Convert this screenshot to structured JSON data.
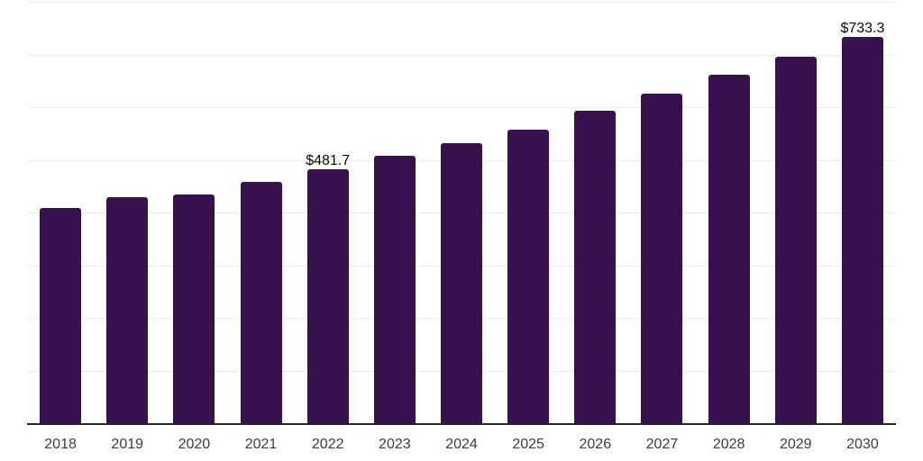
{
  "chart_data": {
    "type": "bar",
    "title": "",
    "xlabel": "",
    "ylabel": "",
    "categories": [
      "2018",
      "2019",
      "2020",
      "2021",
      "2022",
      "2023",
      "2024",
      "2025",
      "2026",
      "2027",
      "2028",
      "2029",
      "2030"
    ],
    "values": [
      408,
      429,
      434,
      458,
      481.7,
      507,
      532,
      558,
      593,
      626,
      661,
      696,
      733.3
    ],
    "data_labels": {
      "2022": "$481.7",
      "2030": "$733.3"
    },
    "ylim": [
      0,
      800
    ],
    "gridline_step": 100,
    "grid": true,
    "legend": false,
    "colors": {
      "bar": "#38124E",
      "axis_line": "#262626",
      "gridline": "#ececec",
      "tick_label": "#3c3c3c",
      "data_label": "#0a0a0a",
      "background": "#ffffff"
    }
  }
}
